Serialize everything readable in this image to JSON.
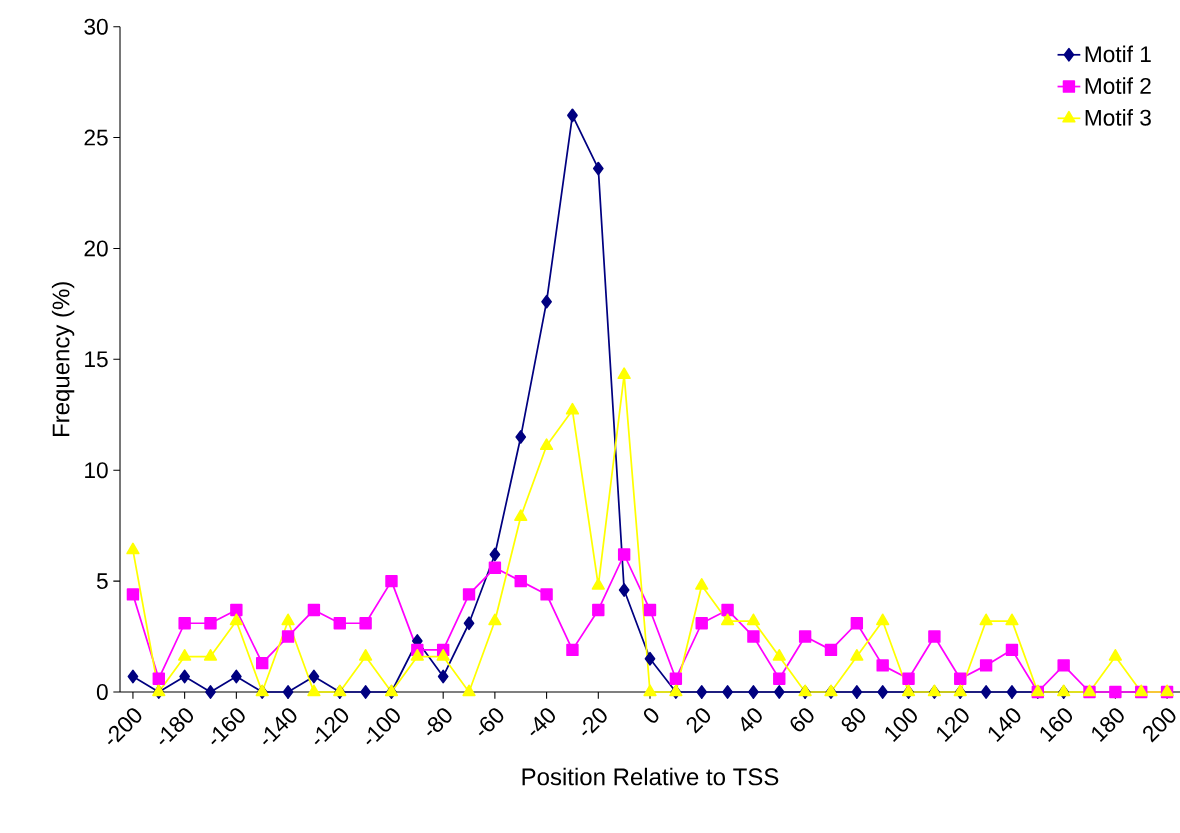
{
  "chart_data": {
    "type": "line",
    "xlabel": "Position Relative to TSS",
    "ylabel": "Frequency (%)",
    "x": [
      -200,
      -190,
      -180,
      -170,
      -160,
      -150,
      -140,
      -130,
      -120,
      -110,
      -100,
      -90,
      -80,
      -70,
      -60,
      -50,
      -40,
      -30,
      -20,
      -10,
      0,
      10,
      20,
      30,
      40,
      50,
      60,
      70,
      80,
      90,
      100,
      110,
      120,
      130,
      140,
      150,
      160,
      170,
      180,
      190,
      200
    ],
    "xlim": [
      -205,
      205
    ],
    "xticks": [
      -200,
      -180,
      -160,
      -140,
      -120,
      -100,
      -80,
      -60,
      -40,
      -20,
      0,
      20,
      40,
      60,
      80,
      100,
      120,
      140,
      160,
      180,
      200
    ],
    "ylim": [
      0,
      30
    ],
    "yticks": [
      0,
      5,
      10,
      15,
      20,
      25,
      30
    ],
    "grid": false,
    "legend": "top right",
    "line_style": "solid",
    "series": [
      {
        "name": "Motif 1",
        "color": "#000080",
        "marker": "diamond",
        "values": [
          0.7,
          0,
          0.7,
          0,
          0.7,
          0,
          0,
          0.7,
          0,
          0,
          0,
          2.3,
          0.7,
          3.1,
          6.2,
          11.5,
          17.6,
          26,
          23.6,
          4.6,
          1.5,
          0,
          0,
          0,
          0,
          0,
          0,
          0,
          0,
          0,
          0,
          0,
          0,
          0,
          0,
          0,
          0,
          null,
          null,
          null,
          null
        ]
      },
      {
        "name": "Motif 2",
        "color": "#ff00ff",
        "marker": "square",
        "values": [
          4.4,
          0.6,
          3.1,
          3.1,
          3.7,
          1.3,
          2.5,
          3.7,
          3.1,
          3.1,
          5.0,
          1.9,
          1.9,
          4.4,
          5.6,
          5.0,
          4.4,
          1.9,
          3.7,
          6.2,
          3.7,
          0.6,
          3.1,
          3.7,
          2.5,
          0.6,
          2.5,
          1.9,
          3.1,
          1.2,
          0.6,
          2.5,
          0.6,
          1.2,
          1.9,
          0,
          1.2,
          0,
          0,
          0,
          0
        ]
      },
      {
        "name": "Motif 3",
        "color": "#ffff00",
        "marker": "triangle",
        "values": [
          6.4,
          0,
          1.6,
          1.6,
          3.2,
          0,
          3.2,
          0,
          0,
          1.6,
          0,
          1.6,
          1.6,
          0,
          3.2,
          7.9,
          11.1,
          12.7,
          4.8,
          14.3,
          0,
          0,
          4.8,
          3.2,
          3.2,
          1.6,
          0,
          0,
          1.6,
          3.2,
          0,
          0,
          0,
          3.2,
          3.2,
          0,
          0,
          0,
          1.6,
          0,
          0
        ]
      }
    ]
  }
}
